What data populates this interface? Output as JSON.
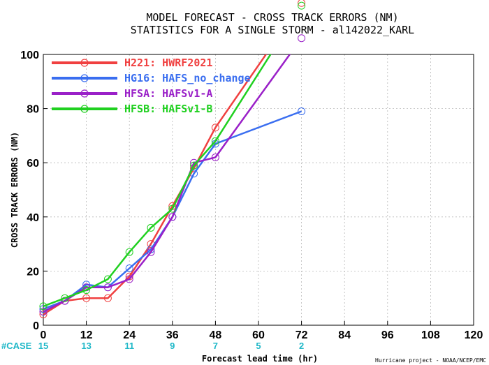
{
  "chart_data": {
    "type": "line",
    "title": [
      "MODEL FORECAST - CROSS TRACK ERRORS (NM)",
      "STATISTICS FOR A SINGLE STORM - al142022_KARL"
    ],
    "xlabel": "Forecast lead time (hr)",
    "ylabel": "CROSS TRACK ERRORS (NM)",
    "xlim": [
      0,
      120
    ],
    "ylim": [
      0,
      100
    ],
    "xticks": [
      0,
      12,
      24,
      36,
      48,
      60,
      72,
      84,
      96,
      108,
      120
    ],
    "yticks": [
      0,
      20,
      40,
      60,
      80,
      100
    ],
    "grid": true,
    "legend_position": "top-left",
    "case_label": "#CASE",
    "case_counts": [
      {
        "x": 0,
        "n": "15"
      },
      {
        "x": 12,
        "n": "13"
      },
      {
        "x": 24,
        "n": "11"
      },
      {
        "x": 36,
        "n": "9"
      },
      {
        "x": 48,
        "n": "7"
      },
      {
        "x": 60,
        "n": "5"
      },
      {
        "x": 72,
        "n": "2"
      }
    ],
    "credit": "Hurricane project - NOAA/NCEP/EMC",
    "series": [
      {
        "name": "H221: HWRF2021",
        "color": "#f04040",
        "x": [
          0,
          6,
          12,
          18,
          24,
          30,
          36,
          42,
          48,
          72
        ],
        "y": [
          4,
          9,
          10,
          10,
          18,
          30,
          44,
          58,
          73,
          119
        ]
      },
      {
        "name": "HG16: HAFS_no_change",
        "color": "#3a6ef0",
        "x": [
          0,
          6,
          12,
          18,
          24,
          30,
          36,
          42,
          48,
          72
        ],
        "y": [
          6,
          9,
          15,
          14,
          21,
          28,
          40,
          56,
          67,
          79
        ]
      },
      {
        "name": "HFSA: HAFSv1-A",
        "color": "#9a20c8",
        "x": [
          0,
          6,
          12,
          18,
          24,
          30,
          36,
          42,
          48,
          72
        ],
        "y": [
          5,
          9,
          14,
          14,
          17,
          27,
          40,
          60,
          62,
          106
        ]
      },
      {
        "name": "HFSB: HAFSv1-B",
        "color": "#20d020",
        "x": [
          0,
          6,
          12,
          18,
          24,
          30,
          36,
          42,
          48,
          72
        ],
        "y": [
          7,
          10,
          13,
          17,
          27,
          36,
          43,
          59,
          68,
          118
        ]
      }
    ]
  }
}
